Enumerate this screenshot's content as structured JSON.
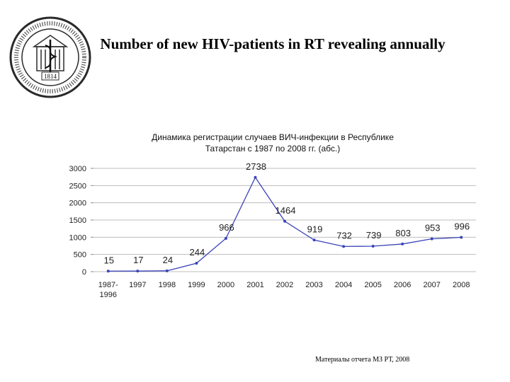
{
  "slide": {
    "title": "Number of new HIV-patients in RT revealing annually",
    "logo_year": "1814",
    "source": "Материалы отчета МЗ РТ, 2008"
  },
  "colors": {
    "line": "#3a44b8",
    "grid": "#bdbdbd",
    "text": "#222222"
  },
  "chart_data": {
    "type": "line",
    "title": "Динамика регистрации случаев ВИЧ-инфекции в Республике Татарстан с 1987 по 2008 гг. (абс.)",
    "categories": [
      "1987-1996",
      "1997",
      "1998",
      "1999",
      "2000",
      "2001",
      "2002",
      "2003",
      "2004",
      "2005",
      "2006",
      "2007",
      "2008"
    ],
    "values": [
      15,
      17,
      24,
      244,
      966,
      2738,
      1464,
      919,
      732,
      739,
      803,
      953,
      996
    ],
    "yticks": [
      "0",
      "500",
      "1000",
      "1500",
      "2000",
      "2500",
      "3000"
    ],
    "ylim": [
      0,
      3000
    ],
    "xlabel": "",
    "ylabel": "",
    "grid": true,
    "legend": "none"
  }
}
